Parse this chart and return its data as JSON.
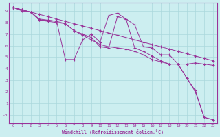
{
  "xlabel": "Windchill (Refroidissement éolien,°C)",
  "background_color": "#cceef0",
  "grid_color": "#aad8dc",
  "line_color": "#993399",
  "xlim": [
    -0.5,
    23.5
  ],
  "ylim": [
    -0.7,
    9.7
  ],
  "xticks": [
    0,
    1,
    2,
    3,
    4,
    5,
    6,
    7,
    8,
    9,
    10,
    11,
    12,
    13,
    14,
    15,
    16,
    17,
    18,
    19,
    20,
    21,
    22,
    23
  ],
  "yticks": [
    0,
    1,
    2,
    3,
    4,
    5,
    6,
    7,
    8,
    9
  ],
  "ytick_labels": [
    "-0",
    "1",
    "2",
    "3",
    "4",
    "5",
    "6",
    "7",
    "8",
    "9"
  ],
  "series": [
    {
      "x": [
        0,
        1,
        2,
        3,
        4,
        5,
        6,
        7,
        8,
        9,
        10,
        11,
        12,
        13,
        14,
        15,
        16,
        17,
        18,
        19,
        20,
        21,
        22,
        23
      ],
      "y": [
        9.3,
        9.1,
        8.9,
        8.7,
        8.5,
        8.3,
        8.1,
        7.9,
        7.7,
        7.5,
        7.3,
        7.1,
        6.9,
        6.7,
        6.5,
        6.3,
        6.1,
        5.9,
        5.7,
        5.5,
        5.3,
        5.1,
        4.9,
        4.7
      ]
    },
    {
      "x": [
        0,
        1,
        2,
        3,
        4,
        5,
        6,
        7,
        8,
        9,
        10,
        11,
        12,
        13,
        14,
        15,
        16,
        17,
        18,
        19,
        20,
        21,
        22,
        23
      ],
      "y": [
        9.3,
        9.1,
        8.9,
        8.3,
        8.2,
        8.1,
        4.8,
        4.8,
        6.5,
        7.0,
        6.3,
        8.6,
        8.8,
        8.3,
        7.8,
        5.9,
        5.8,
        5.2,
        5.2,
        4.4,
        4.4,
        4.5,
        4.4,
        4.3
      ]
    },
    {
      "x": [
        0,
        1,
        2,
        3,
        4,
        5,
        6,
        7,
        8,
        9,
        10,
        11,
        12,
        13,
        14,
        15,
        16,
        17,
        18,
        19,
        20,
        21,
        22,
        23
      ],
      "y": [
        9.3,
        9.0,
        8.9,
        8.2,
        8.1,
        8.0,
        7.9,
        7.3,
        7.0,
        6.7,
        5.9,
        5.8,
        8.5,
        8.3,
        5.8,
        5.5,
        5.1,
        4.7,
        4.4,
        4.4,
        3.2,
        2.1,
        -0.2,
        -0.4
      ]
    },
    {
      "x": [
        0,
        1,
        2,
        3,
        4,
        5,
        6,
        7,
        8,
        9,
        10,
        11,
        12,
        13,
        14,
        15,
        16,
        17,
        18,
        19,
        20,
        21,
        22,
        23
      ],
      "y": [
        9.3,
        9.1,
        8.9,
        8.2,
        8.2,
        8.1,
        7.9,
        7.3,
        6.9,
        6.5,
        6.1,
        5.9,
        5.8,
        5.7,
        5.5,
        5.2,
        4.8,
        4.6,
        4.4,
        4.4,
        3.2,
        2.0,
        -0.2,
        -0.4
      ]
    }
  ]
}
